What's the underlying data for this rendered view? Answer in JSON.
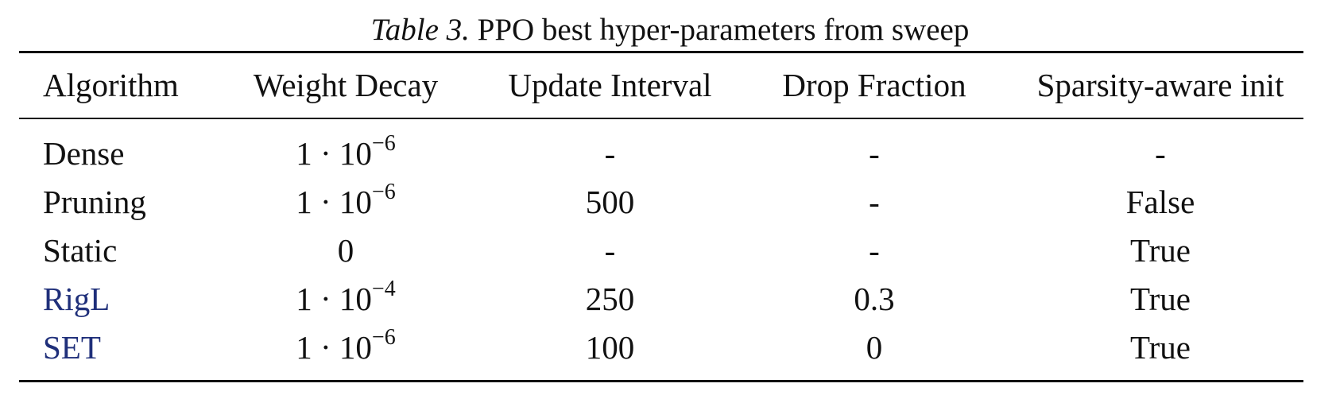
{
  "caption": {
    "label": "Table 3.",
    "title": "PPO best hyper-parameters from sweep"
  },
  "table": {
    "headers": [
      "Algorithm",
      "Weight Decay",
      "Update Interval",
      "Drop Fraction",
      "Sparsity-aware init"
    ],
    "rows": [
      {
        "algorithm": "Dense",
        "wd_base": "1 · 10",
        "wd_exp": "−6",
        "update_interval": "-",
        "drop_fraction": "-",
        "sparsity_init": "-"
      },
      {
        "algorithm": "Pruning",
        "wd_base": "1 · 10",
        "wd_exp": "−6",
        "update_interval": "500",
        "drop_fraction": "-",
        "sparsity_init": "False"
      },
      {
        "algorithm": "Static",
        "wd_base": "0",
        "wd_exp": "",
        "update_interval": "-",
        "drop_fraction": "-",
        "sparsity_init": "True"
      },
      {
        "algorithm": "RigL",
        "wd_base": "1 · 10",
        "wd_exp": "−4",
        "update_interval": "250",
        "drop_fraction": "0.3",
        "sparsity_init": "True"
      },
      {
        "algorithm": "SET",
        "wd_base": "1 · 10",
        "wd_exp": "−6",
        "update_interval": "100",
        "drop_fraction": "0",
        "sparsity_init": "True"
      }
    ]
  },
  "colors": {
    "text": "#111111",
    "link": "#1f2f7a"
  }
}
